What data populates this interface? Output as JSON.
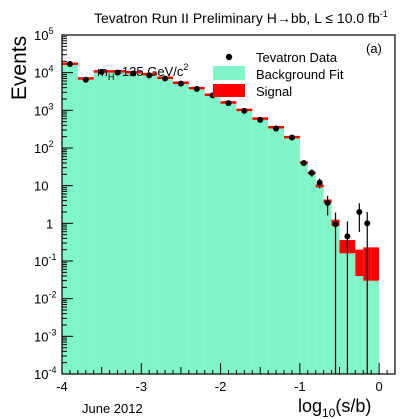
{
  "chart_data": {
    "type": "bar",
    "title": "Tevatron Run II Preliminary H→bb, L ≤ 10.0 fb",
    "title_sup": "-1",
    "ylabel": "Events",
    "xlabel_main": "log",
    "xlabel_sub": "10",
    "xlabel_tail": "(s/b)",
    "footnote": "June 2012",
    "panel_tag": "(a)",
    "mass_label_main": "m",
    "mass_label_sub": "H",
    "mass_label_mid": "=125 GeV/c",
    "mass_label_sup": "2",
    "log_scale_y": true,
    "xlim": [
      -4.0,
      0.2
    ],
    "ylim_log10": [
      -4,
      5
    ],
    "grid": false,
    "legend_position": "top-right",
    "x_ticks": [
      {
        "value": -4,
        "label": "-4"
      },
      {
        "value": -3,
        "label": "-3"
      },
      {
        "value": -2,
        "label": "-2"
      },
      {
        "value": -1,
        "label": "-1"
      },
      {
        "value": 0,
        "label": "0"
      }
    ],
    "y_ticks": [
      {
        "exp": 5,
        "base": "10",
        "sup": "5"
      },
      {
        "exp": 4,
        "base": "10",
        "sup": "4"
      },
      {
        "exp": 3,
        "base": "10",
        "sup": "3"
      },
      {
        "exp": 2,
        "base": "10",
        "sup": "2"
      },
      {
        "exp": 1,
        "base": "10",
        "sup": ""
      },
      {
        "exp": 0,
        "base": "1",
        "sup": ""
      },
      {
        "exp": -1,
        "base": "10",
        "sup": "-1"
      },
      {
        "exp": -2,
        "base": "10",
        "sup": "-2"
      },
      {
        "exp": -3,
        "base": "10",
        "sup": "-3"
      },
      {
        "exp": -4,
        "base": "10",
        "sup": "-4"
      }
    ],
    "legend": [
      {
        "label": "Tevatron Data",
        "kind": "marker"
      },
      {
        "label": "Background Fit",
        "kind": "fill",
        "color": "#7ff5c8"
      },
      {
        "label": "Signal",
        "kind": "fill",
        "color": "#ff0000"
      }
    ],
    "colors": {
      "background": "#7ff5c8",
      "signal": "#ff0000",
      "data": "#000000"
    },
    "bins": [
      {
        "x0": -4.0,
        "x1": -3.8,
        "bkg": 16000,
        "sig": 3,
        "data": 17000
      },
      {
        "x0": -3.8,
        "x1": -3.6,
        "bkg": 6500,
        "sig": 3,
        "data": 6500
      },
      {
        "x0": -3.6,
        "x1": -3.4,
        "bkg": 10000,
        "sig": 4,
        "data": 10500
      },
      {
        "x0": -3.4,
        "x1": -3.2,
        "bkg": 10000,
        "sig": 4,
        "data": 10000
      },
      {
        "x0": -3.2,
        "x1": -3.0,
        "bkg": 9500,
        "sig": 5,
        "data": 9500
      },
      {
        "x0": -3.0,
        "x1": -2.8,
        "bkg": 8500,
        "sig": 6,
        "data": 8500
      },
      {
        "x0": -2.8,
        "x1": -2.6,
        "bkg": 6800,
        "sig": 7,
        "data": 7000
      },
      {
        "x0": -2.6,
        "x1": -2.4,
        "bkg": 5000,
        "sig": 7,
        "data": 5100
      },
      {
        "x0": -2.4,
        "x1": -2.2,
        "bkg": 3600,
        "sig": 7,
        "data": 3700
      },
      {
        "x0": -2.2,
        "x1": -2.0,
        "bkg": 2400,
        "sig": 8,
        "data": 2500
      },
      {
        "x0": -2.0,
        "x1": -1.8,
        "bkg": 1500,
        "sig": 8,
        "data": 1550
      },
      {
        "x0": -1.8,
        "x1": -1.6,
        "bkg": 950,
        "sig": 9,
        "data": 970
      },
      {
        "x0": -1.6,
        "x1": -1.4,
        "bkg": 560,
        "sig": 9,
        "data": 560
      },
      {
        "x0": -1.4,
        "x1": -1.2,
        "bkg": 330,
        "sig": 9,
        "data": 330
      },
      {
        "x0": -1.2,
        "x1": -1.0,
        "bkg": 180,
        "sig": 9,
        "data": 190
      },
      {
        "x0": -1.0,
        "x1": -0.9,
        "bkg": 38,
        "sig": 3,
        "data": 40
      },
      {
        "x0": -0.9,
        "x1": -0.8,
        "bkg": 20,
        "sig": 2.5,
        "data": 22
      },
      {
        "x0": -0.8,
        "x1": -0.7,
        "bkg": 9,
        "sig": 1.8,
        "data": 12
      },
      {
        "x0": -0.7,
        "x1": -0.6,
        "bkg": 3.4,
        "sig": 0.9,
        "data": 3.5
      },
      {
        "x0": -0.6,
        "x1": -0.5,
        "bkg": 0.85,
        "sig": 0.4,
        "data": 0.95
      },
      {
        "x0": -0.5,
        "x1": -0.3,
        "bkg": 0.16,
        "sig": 0.2,
        "data": 0.45
      },
      {
        "x0": -0.3,
        "x1": -0.2,
        "bkg": 0.04,
        "sig": 0.16,
        "data": 2.0
      },
      {
        "x0": -0.2,
        "x1": -0.1,
        "bkg": 0.03,
        "sig": 0.2,
        "data": 1.0
      },
      {
        "x0": -0.1,
        "x1": 0.0,
        "bkg": 0.03,
        "sig": 0.2,
        "data": null
      }
    ]
  }
}
